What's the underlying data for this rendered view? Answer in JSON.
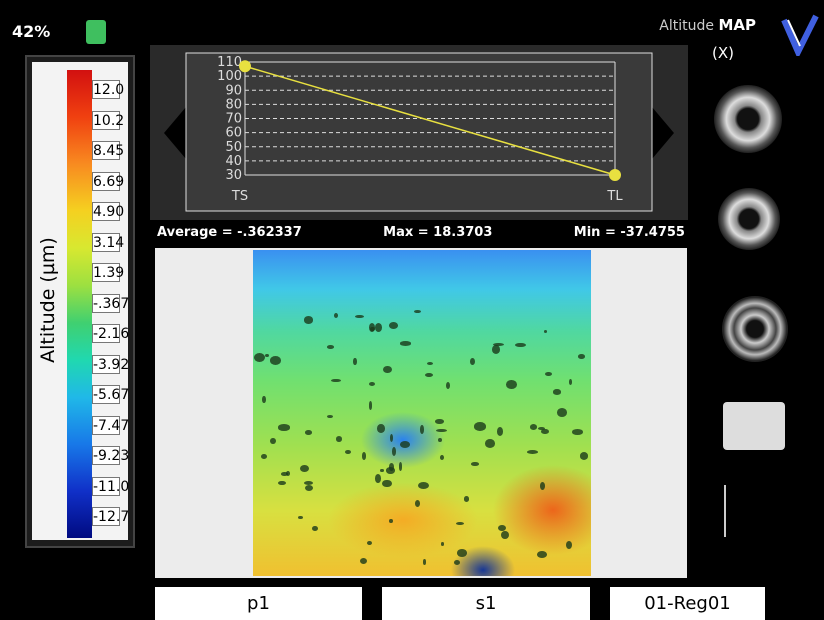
{
  "battery": "42%",
  "header": {
    "title_prefix": "Altitude",
    "title_bold": "MAP",
    "axis": "(X)"
  },
  "scale": {
    "label": "Altitude (µm)",
    "values": [
      "12.0",
      "10.2",
      "8.45",
      "6.69",
      "4.90",
      "3.14",
      "1.39",
      "-.367",
      "-2.16",
      "-3.92",
      "-5.67",
      "-7.47",
      "-9.23",
      "-11.0",
      "-12.7"
    ]
  },
  "profile": {
    "type": "line",
    "categories": [
      "TS",
      "TL"
    ],
    "values": [
      107,
      30
    ],
    "ylim": [
      30,
      110
    ],
    "yticks": [
      30,
      40,
      50,
      60,
      70,
      80,
      90,
      100,
      110
    ],
    "color": "#e8e040"
  },
  "stats": [
    "Average = -.362337",
    "Max = 18.3703",
    "Min = -37.4755"
  ],
  "footer": [
    "p1",
    "s1",
    "01-Reg01"
  ]
}
